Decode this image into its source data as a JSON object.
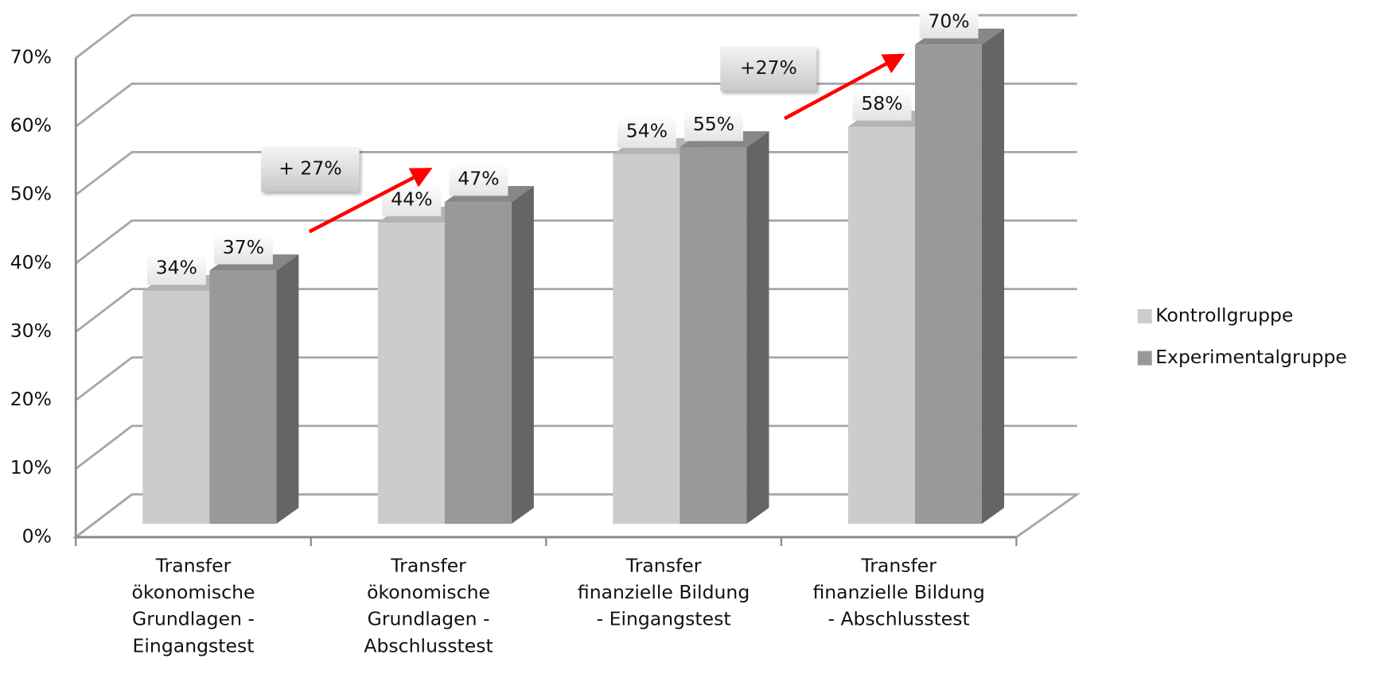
{
  "chart_data": {
    "type": "bar3d",
    "categories": [
      "Transfer\nökonomische\nGrundlagen -\nEingangstest",
      "Transfer\nökonomische\nGrundlagen -\nAbschlusstest",
      "Transfer\nfinanzielle Bildung\n- Eingangstest",
      "Transfer\nfinanzielle Bildung\n- Abschlusstest"
    ],
    "series": [
      {
        "name": "Kontrollgruppe",
        "color": "#cccccc",
        "values": [
          34,
          44,
          54,
          58
        ],
        "value_labels": [
          "34%",
          "44%",
          "54%",
          "58%"
        ]
      },
      {
        "name": "Experimentalgruppe",
        "color": "#999999",
        "values": [
          37,
          47,
          55,
          70
        ],
        "value_labels": [
          "37%",
          "47%",
          "55%",
          "70%"
        ]
      }
    ],
    "ylim": [
      0,
      70
    ],
    "yticks": [
      {
        "value": 0,
        "label": "0%"
      },
      {
        "value": 10,
        "label": "10%"
      },
      {
        "value": 20,
        "label": "20%"
      },
      {
        "value": 30,
        "label": "30%"
      },
      {
        "value": 40,
        "label": "40%"
      },
      {
        "value": 50,
        "label": "50%"
      },
      {
        "value": 60,
        "label": "60%"
      },
      {
        "value": 70,
        "label": "70%"
      }
    ],
    "grid": true,
    "legend": "right",
    "annotations": [
      "+ 27%",
      "+27%"
    ]
  }
}
